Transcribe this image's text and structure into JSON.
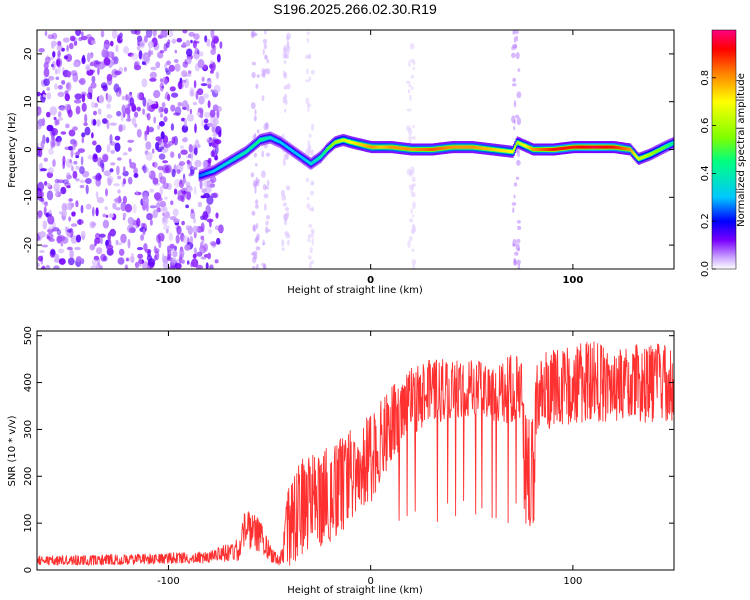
{
  "title": "S196.2025.266.02.30.R19",
  "chart_data": [
    {
      "type": "heatmap",
      "name": "spectrogram",
      "xlabel": "Height of straight line (km)",
      "ylabel": "Frequency (Hz)",
      "xlim": [
        -165,
        150
      ],
      "ylim": [
        -25,
        25
      ],
      "xticks": [
        -100,
        0,
        100
      ],
      "yticks": [
        -20,
        -10,
        0,
        10,
        20
      ],
      "grid": false,
      "colorbar": {
        "label": "Normalized spectral amplitude",
        "range": [
          0.0,
          1.0
        ],
        "ticks": [
          0.0,
          0.2,
          0.4,
          0.6,
          0.8
        ],
        "colors": [
          "#ffffff",
          "#c8a0ff",
          "#7a00ff",
          "#0000ff",
          "#00c8ff",
          "#00ff80",
          "#80ff00",
          "#ffff00",
          "#ff8000",
          "#ff0000",
          "#ff0080"
        ]
      },
      "ridge": {
        "description": "dominant frequency ridge",
        "x": [
          -85,
          -78,
          -70,
          -62,
          -55,
          -50,
          -45,
          -40,
          -35,
          -30,
          -25,
          -22,
          -18,
          -14,
          -10,
          -5,
          0,
          5,
          10,
          20,
          30,
          40,
          50,
          60,
          70,
          72,
          80,
          90,
          100,
          110,
          120,
          128,
          132,
          138,
          145,
          150
        ],
        "y": [
          -5.5,
          -4.5,
          -2.5,
          -0.5,
          2.0,
          2.5,
          1.5,
          0.0,
          -1.5,
          -3.0,
          -1.5,
          0.0,
          1.5,
          2.0,
          1.5,
          1.0,
          0.5,
          0.5,
          0.5,
          0.0,
          0.0,
          0.5,
          0.5,
          0.0,
          -0.5,
          1.5,
          0.0,
          0.0,
          0.5,
          0.5,
          0.5,
          0.0,
          -2.0,
          -1.0,
          0.5,
          1.5
        ],
        "amplitude": [
          0.25,
          0.3,
          0.35,
          0.4,
          0.45,
          0.35,
          0.3,
          0.3,
          0.3,
          0.35,
          0.4,
          0.5,
          0.6,
          0.65,
          0.7,
          0.75,
          0.8,
          0.75,
          0.8,
          0.8,
          0.85,
          0.8,
          0.8,
          0.75,
          0.7,
          0.6,
          0.8,
          0.9,
          0.9,
          0.95,
          0.9,
          0.8,
          0.65,
          0.6,
          0.5,
          0.4
        ]
      },
      "noise_region": {
        "x_from": -165,
        "x_to": -80,
        "amplitude": 0.1
      }
    },
    {
      "type": "line",
      "name": "snr",
      "xlabel": "Height of straight line (km)",
      "ylabel": "SNR (10 * v/v)",
      "xlim": [
        -165,
        150
      ],
      "ylim": [
        0,
        510
      ],
      "xticks": [
        -100,
        0,
        100
      ],
      "yticks": [
        0,
        100,
        200,
        300,
        400,
        500
      ],
      "grid": false,
      "color": "#ff3030",
      "envelope": {
        "x": [
          -165,
          -140,
          -110,
          -80,
          -65,
          -62,
          -55,
          -50,
          -45,
          -40,
          -35,
          -30,
          -25,
          -20,
          -15,
          -10,
          -5,
          0,
          5,
          10,
          15,
          20,
          25,
          30,
          40,
          50,
          60,
          70,
          75,
          76,
          81,
          82,
          90,
          100,
          110,
          120,
          130,
          140,
          150
        ],
        "low": [
          10,
          10,
          12,
          15,
          20,
          40,
          40,
          20,
          5,
          10,
          20,
          40,
          50,
          60,
          80,
          100,
          120,
          140,
          170,
          220,
          260,
          290,
          300,
          310,
          320,
          330,
          320,
          310,
          330,
          90,
          90,
          300,
          300,
          310,
          320,
          310,
          320,
          310,
          320
        ],
        "high": [
          30,
          32,
          35,
          40,
          70,
          130,
          110,
          60,
          30,
          200,
          230,
          260,
          240,
          280,
          280,
          300,
          310,
          340,
          360,
          390,
          410,
          430,
          440,
          450,
          450,
          450,
          440,
          460,
          450,
          330,
          330,
          460,
          470,
          480,
          490,
          470,
          480,
          490,
          470
        ]
      },
      "dropouts_x": [
        14,
        18,
        22,
        33,
        38,
        42,
        46,
        52,
        55,
        60,
        62,
        68,
        72
      ]
    }
  ]
}
